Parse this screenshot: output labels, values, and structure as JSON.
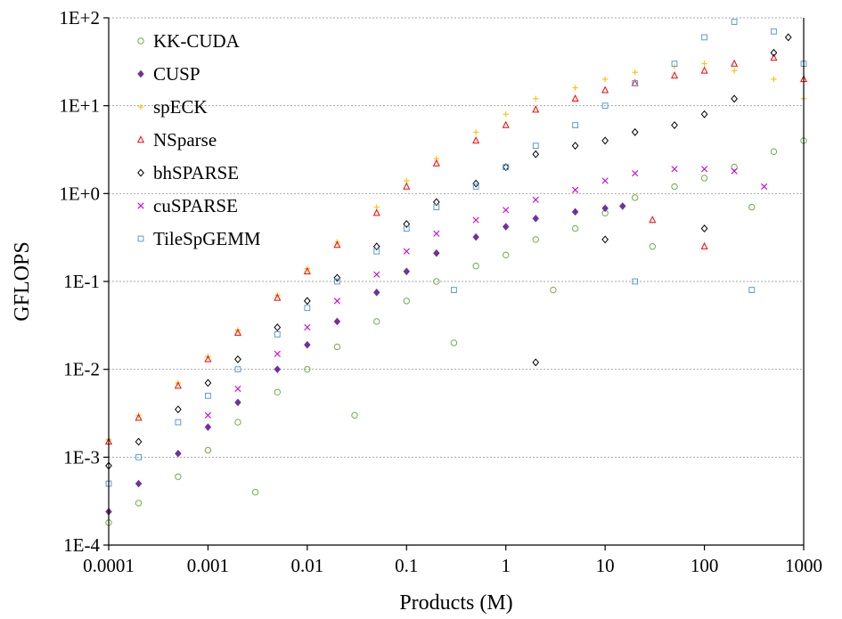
{
  "chart_data": {
    "type": "scatter",
    "title": "",
    "xlabel": "Products (M)",
    "ylabel": "GFLOPS",
    "xscale": "log",
    "yscale": "log",
    "xlim": [
      0.0001,
      1000
    ],
    "ylim": [
      0.0001,
      100
    ],
    "x_tick_values": [
      0.0001,
      0.001,
      0.01,
      0.1,
      1,
      10,
      100,
      1000
    ],
    "x_tick_labels": [
      "0.0001",
      "0.001",
      "0.01",
      "0.1",
      "1",
      "10",
      "100",
      "1000"
    ],
    "y_tick_values": [
      0.0001,
      0.001,
      0.01,
      0.1,
      1,
      10,
      100
    ],
    "y_tick_labels": [
      "1E-4",
      "1E-3",
      "1E-2",
      "1E-1",
      "1E+0",
      "1E+1",
      "1E+2"
    ],
    "grid": "horizontal-dotted",
    "legend_position": "top-left",
    "series": [
      {
        "name": "KK-CUDA",
        "marker": "circle",
        "color": "#70ad47",
        "points": [
          [
            0.0001,
            0.00018
          ],
          [
            0.0002,
            0.0003
          ],
          [
            0.0005,
            0.0006
          ],
          [
            0.001,
            0.0012
          ],
          [
            0.002,
            0.0025
          ],
          [
            0.005,
            0.0055
          ],
          [
            0.01,
            0.01
          ],
          [
            0.02,
            0.018
          ],
          [
            0.05,
            0.035
          ],
          [
            0.1,
            0.06
          ],
          [
            0.2,
            0.1
          ],
          [
            0.5,
            0.15
          ],
          [
            1,
            0.2
          ],
          [
            2,
            0.3
          ],
          [
            5,
            0.4
          ],
          [
            10,
            0.6
          ],
          [
            20,
            0.9
          ],
          [
            50,
            1.2
          ],
          [
            100,
            1.5
          ],
          [
            200,
            2
          ],
          [
            500,
            3
          ],
          [
            1000,
            4
          ],
          [
            0.003,
            0.0004
          ],
          [
            0.03,
            0.003
          ],
          [
            0.3,
            0.02
          ],
          [
            3,
            0.08
          ],
          [
            30,
            0.25
          ],
          [
            300,
            0.7
          ]
        ]
      },
      {
        "name": "CUSP",
        "marker": "diamond-filled",
        "color": "#7030a0",
        "points": [
          [
            0.0001,
            0.00024
          ],
          [
            0.0002,
            0.0005
          ],
          [
            0.0005,
            0.0011
          ],
          [
            0.001,
            0.0022
          ],
          [
            0.002,
            0.0042
          ],
          [
            0.005,
            0.01
          ],
          [
            0.01,
            0.019
          ],
          [
            0.02,
            0.035
          ],
          [
            0.05,
            0.075
          ],
          [
            0.1,
            0.13
          ],
          [
            0.2,
            0.21
          ],
          [
            0.5,
            0.32
          ],
          [
            1,
            0.42
          ],
          [
            2,
            0.52
          ],
          [
            5,
            0.62
          ],
          [
            10,
            0.68
          ],
          [
            15,
            0.72
          ]
        ]
      },
      {
        "name": "spECK",
        "marker": "plus",
        "color": "#ffc000",
        "points": [
          [
            0.0001,
            0.0016
          ],
          [
            0.0002,
            0.003
          ],
          [
            0.0005,
            0.007
          ],
          [
            0.001,
            0.014
          ],
          [
            0.002,
            0.028
          ],
          [
            0.005,
            0.07
          ],
          [
            0.01,
            0.14
          ],
          [
            0.02,
            0.28
          ],
          [
            0.05,
            0.7
          ],
          [
            0.1,
            1.4
          ],
          [
            0.2,
            2.5
          ],
          [
            0.5,
            5
          ],
          [
            1,
            8
          ],
          [
            2,
            12
          ],
          [
            5,
            16
          ],
          [
            10,
            20
          ],
          [
            20,
            24
          ],
          [
            50,
            28
          ],
          [
            100,
            30
          ],
          [
            200,
            25
          ],
          [
            500,
            20
          ],
          [
            1000,
            12
          ]
        ]
      },
      {
        "name": "NSparse",
        "marker": "triangle",
        "color": "#ff0000",
        "points": [
          [
            0.0001,
            0.0015
          ],
          [
            0.0002,
            0.0028
          ],
          [
            0.0005,
            0.0065
          ],
          [
            0.001,
            0.013
          ],
          [
            0.002,
            0.026
          ],
          [
            0.005,
            0.065
          ],
          [
            0.01,
            0.13
          ],
          [
            0.02,
            0.26
          ],
          [
            0.05,
            0.6
          ],
          [
            0.1,
            1.2
          ],
          [
            0.2,
            2.2
          ],
          [
            0.5,
            4
          ],
          [
            1,
            6
          ],
          [
            2,
            9
          ],
          [
            5,
            12
          ],
          [
            10,
            15
          ],
          [
            20,
            18
          ],
          [
            50,
            22
          ],
          [
            100,
            25
          ],
          [
            200,
            30
          ],
          [
            500,
            35
          ],
          [
            1000,
            20
          ],
          [
            30,
            0.5
          ],
          [
            100,
            0.25
          ]
        ]
      },
      {
        "name": "bhSPARSE",
        "marker": "diamond",
        "color": "#000000",
        "points": [
          [
            0.0001,
            0.0008
          ],
          [
            0.0002,
            0.0015
          ],
          [
            0.0005,
            0.0035
          ],
          [
            0.001,
            0.007
          ],
          [
            0.002,
            0.013
          ],
          [
            0.005,
            0.03
          ],
          [
            0.01,
            0.06
          ],
          [
            0.02,
            0.11
          ],
          [
            0.05,
            0.25
          ],
          [
            0.1,
            0.45
          ],
          [
            0.2,
            0.8
          ],
          [
            0.5,
            1.3
          ],
          [
            1,
            2
          ],
          [
            2,
            2.8
          ],
          [
            5,
            3.5
          ],
          [
            10,
            4
          ],
          [
            20,
            5
          ],
          [
            50,
            6
          ],
          [
            100,
            8
          ],
          [
            200,
            12
          ],
          [
            500,
            40
          ],
          [
            700,
            60
          ],
          [
            2,
            0.012
          ],
          [
            10,
            0.3
          ],
          [
            100,
            0.4
          ]
        ]
      },
      {
        "name": "cuSPARSE",
        "marker": "cross",
        "color": "#cc00cc",
        "points": [
          [
            0.001,
            0.003
          ],
          [
            0.002,
            0.006
          ],
          [
            0.005,
            0.015
          ],
          [
            0.01,
            0.03
          ],
          [
            0.02,
            0.06
          ],
          [
            0.05,
            0.12
          ],
          [
            0.1,
            0.22
          ],
          [
            0.2,
            0.35
          ],
          [
            0.5,
            0.5
          ],
          [
            1,
            0.65
          ],
          [
            2,
            0.85
          ],
          [
            5,
            1.1
          ],
          [
            10,
            1.4
          ],
          [
            20,
            1.7
          ],
          [
            50,
            1.9
          ],
          [
            100,
            1.9
          ],
          [
            200,
            1.8
          ],
          [
            400,
            1.2
          ]
        ]
      },
      {
        "name": "TileSpGEMM",
        "marker": "square",
        "color": "#5b9bd5",
        "points": [
          [
            0.0001,
            0.0005
          ],
          [
            0.0002,
            0.001
          ],
          [
            0.0005,
            0.0025
          ],
          [
            0.001,
            0.005
          ],
          [
            0.002,
            0.01
          ],
          [
            0.005,
            0.025
          ],
          [
            0.01,
            0.05
          ],
          [
            0.02,
            0.1
          ],
          [
            0.05,
            0.22
          ],
          [
            0.1,
            0.4
          ],
          [
            0.2,
            0.7
          ],
          [
            0.5,
            1.2
          ],
          [
            1,
            2
          ],
          [
            2,
            3.5
          ],
          [
            5,
            6
          ],
          [
            10,
            10
          ],
          [
            20,
            18
          ],
          [
            50,
            30
          ],
          [
            100,
            60
          ],
          [
            200,
            90
          ],
          [
            500,
            70
          ],
          [
            1000,
            30
          ],
          [
            0.3,
            0.08
          ],
          [
            20,
            0.1
          ],
          [
            300,
            0.08
          ]
        ]
      }
    ]
  }
}
